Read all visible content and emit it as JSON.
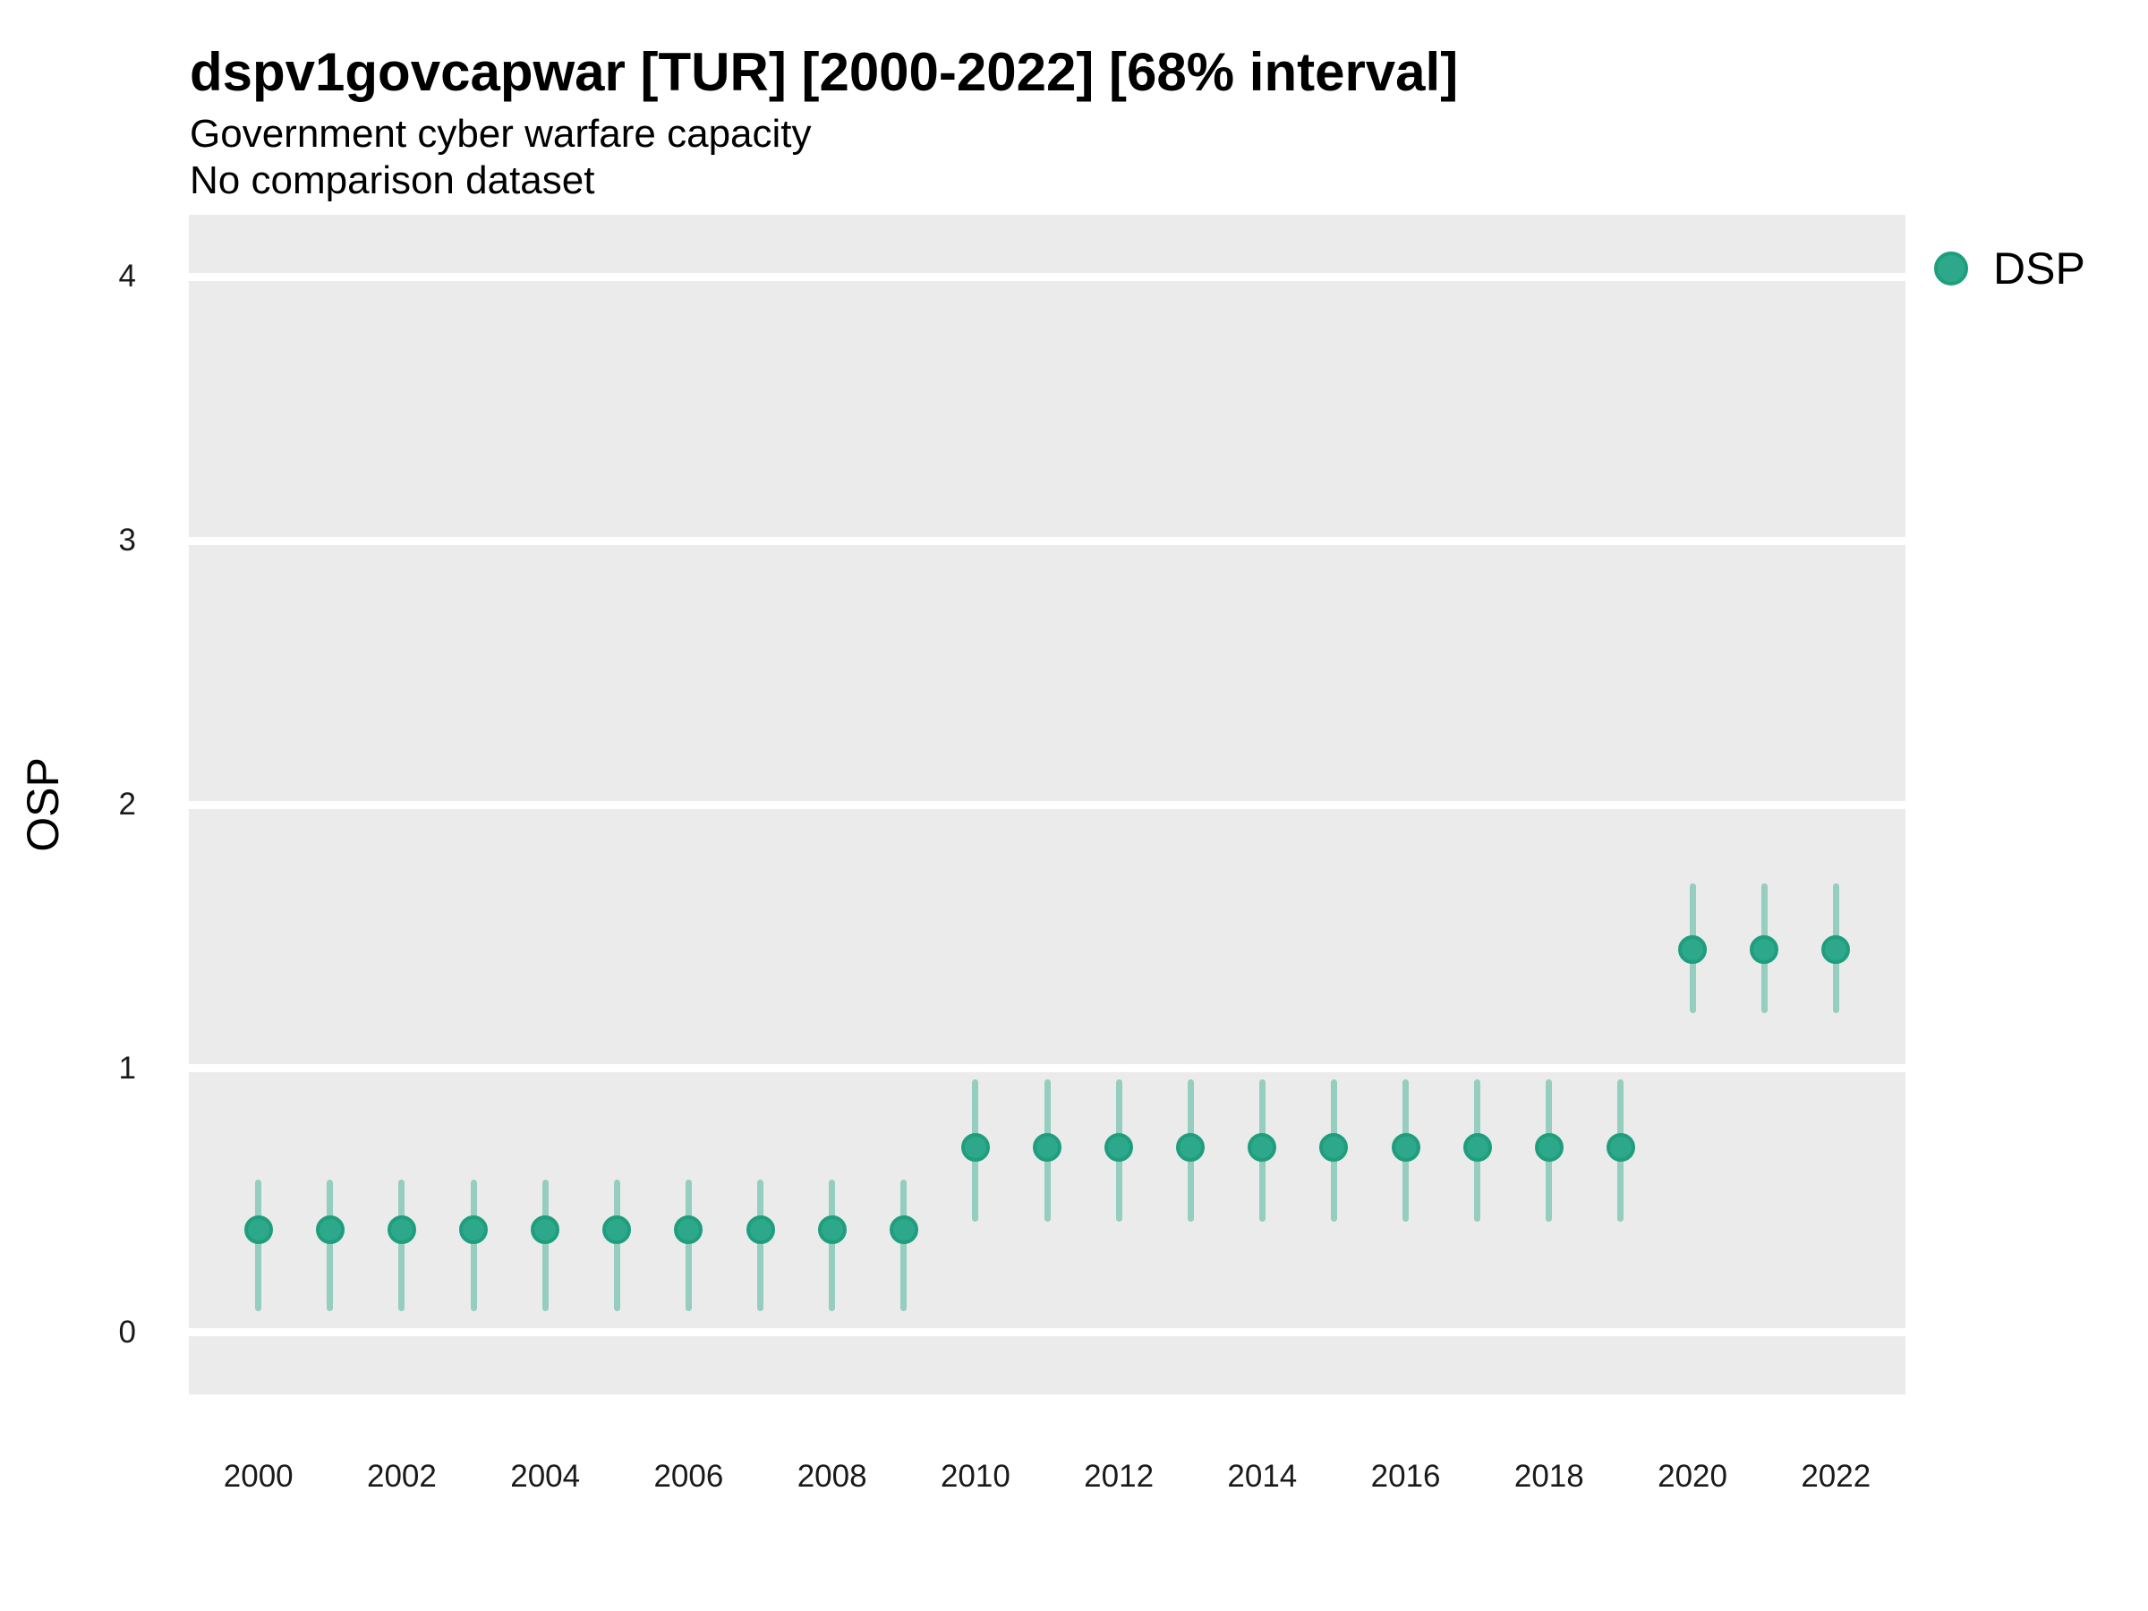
{
  "header": {
    "title": "dspv1govcapwar [TUR] [2000-2022] [68% interval]",
    "subtitle": "Government cyber warfare capacity",
    "subtitle2": "No comparison dataset"
  },
  "legend": {
    "label": "DSP"
  },
  "colors": {
    "point_fill": "#2da88a",
    "point_stroke": "#1f9e7e",
    "interval_line": "rgba(45,168,138,0.45)",
    "panel_background": "#ebebeb",
    "gridline": "#ffffff",
    "tick_text": "#1a1a1a"
  },
  "chart_data": {
    "type": "pointrange",
    "title": "dspv1govcapwar [TUR] [2000-2022] [68% interval]",
    "subtitle": "Government cyber warfare capacity",
    "comparison_note": "No comparison dataset",
    "interval_level": "68%",
    "xlabel": "",
    "ylabel": "OSP",
    "legend_position": "right",
    "grid": "horizontal-major-only",
    "xlim": [
      1999.03,
      2022.97
    ],
    "ylim": [
      -0.235,
      4.235
    ],
    "x_ticks": [
      2000,
      2002,
      2004,
      2006,
      2008,
      2010,
      2012,
      2014,
      2016,
      2018,
      2020,
      2022
    ],
    "y_ticks": [
      0,
      1,
      2,
      3,
      4
    ],
    "series": [
      {
        "name": "DSP",
        "points": [
          {
            "year": 2000,
            "estimate": 0.39,
            "lower": 0.08,
            "upper": 0.58
          },
          {
            "year": 2001,
            "estimate": 0.39,
            "lower": 0.08,
            "upper": 0.58
          },
          {
            "year": 2002,
            "estimate": 0.39,
            "lower": 0.08,
            "upper": 0.58
          },
          {
            "year": 2003,
            "estimate": 0.39,
            "lower": 0.08,
            "upper": 0.58
          },
          {
            "year": 2004,
            "estimate": 0.39,
            "lower": 0.08,
            "upper": 0.58
          },
          {
            "year": 2005,
            "estimate": 0.39,
            "lower": 0.08,
            "upper": 0.58
          },
          {
            "year": 2006,
            "estimate": 0.39,
            "lower": 0.08,
            "upper": 0.58
          },
          {
            "year": 2007,
            "estimate": 0.39,
            "lower": 0.08,
            "upper": 0.58
          },
          {
            "year": 2008,
            "estimate": 0.39,
            "lower": 0.08,
            "upper": 0.58
          },
          {
            "year": 2009,
            "estimate": 0.39,
            "lower": 0.08,
            "upper": 0.58
          },
          {
            "year": 2010,
            "estimate": 0.7,
            "lower": 0.42,
            "upper": 0.96
          },
          {
            "year": 2011,
            "estimate": 0.7,
            "lower": 0.42,
            "upper": 0.96
          },
          {
            "year": 2012,
            "estimate": 0.7,
            "lower": 0.42,
            "upper": 0.96
          },
          {
            "year": 2013,
            "estimate": 0.7,
            "lower": 0.42,
            "upper": 0.96
          },
          {
            "year": 2014,
            "estimate": 0.7,
            "lower": 0.42,
            "upper": 0.96
          },
          {
            "year": 2015,
            "estimate": 0.7,
            "lower": 0.42,
            "upper": 0.96
          },
          {
            "year": 2016,
            "estimate": 0.7,
            "lower": 0.42,
            "upper": 0.96
          },
          {
            "year": 2017,
            "estimate": 0.7,
            "lower": 0.42,
            "upper": 0.96
          },
          {
            "year": 2018,
            "estimate": 0.7,
            "lower": 0.42,
            "upper": 0.96
          },
          {
            "year": 2019,
            "estimate": 0.7,
            "lower": 0.42,
            "upper": 0.96
          },
          {
            "year": 2020,
            "estimate": 1.45,
            "lower": 1.21,
            "upper": 1.7
          },
          {
            "year": 2021,
            "estimate": 1.45,
            "lower": 1.21,
            "upper": 1.7
          },
          {
            "year": 2022,
            "estimate": 1.45,
            "lower": 1.21,
            "upper": 1.7
          }
        ]
      }
    ]
  }
}
